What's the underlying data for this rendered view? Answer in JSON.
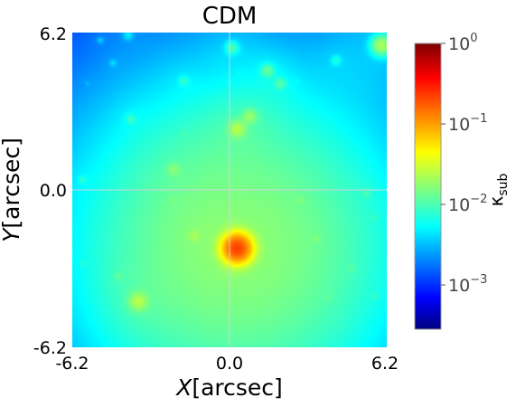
{
  "chart_data": {
    "type": "heatmap",
    "title": "CDM",
    "xlabel_italic": "X",
    "xlabel_rest": "[arcsec]",
    "ylabel_italic": "Y",
    "ylabel_rest": "[arcsec]",
    "xlim": [
      -6.2,
      6.2
    ],
    "ylim": [
      -6.2,
      6.2
    ],
    "x_ticks": [
      "-6.2",
      "0.0",
      "6.2"
    ],
    "y_ticks": [
      "6.2",
      "0.0",
      "-6.2"
    ],
    "crosshair": {
      "x": 0.0,
      "y": 0.0,
      "color": "#d0d0e0"
    },
    "colorbar": {
      "label_main": "κ",
      "label_sub": "sub",
      "scale": "log",
      "range": [
        0.0003,
        1.0
      ],
      "tick_base": "10",
      "tick_exponents": [
        "0",
        "−1",
        "−2",
        "−3"
      ],
      "tick_values": [
        1.0,
        0.1,
        0.01,
        0.001
      ],
      "colormap": "jet"
    },
    "background_kappa": 0.0012,
    "subhalos": [
      {
        "x": 0.3,
        "y": -2.3,
        "peak": 0.2,
        "core": 0.8,
        "halo": 4.0
      },
      {
        "x": -3.6,
        "y": -4.4,
        "peak": 0.015,
        "core": 0.55,
        "halo": 1.0
      },
      {
        "x": 0.3,
        "y": 2.4,
        "peak": 0.015,
        "core": 0.5,
        "halo": 1.0
      },
      {
        "x": 0.8,
        "y": 2.9,
        "peak": 0.01,
        "core": 0.45,
        "halo": 0.8
      },
      {
        "x": 1.5,
        "y": 4.7,
        "peak": 0.008,
        "core": 0.4,
        "halo": 0.7
      },
      {
        "x": 2.0,
        "y": 4.2,
        "peak": 0.006,
        "core": 0.35,
        "halo": 0.6
      },
      {
        "x": 0.1,
        "y": 5.6,
        "peak": 0.007,
        "core": 0.4,
        "halo": 0.8
      },
      {
        "x": 6.0,
        "y": 5.7,
        "peak": 0.02,
        "core": 0.6,
        "halo": 1.5
      },
      {
        "x": -2.2,
        "y": 0.8,
        "peak": 0.006,
        "core": 0.4,
        "halo": 1.2
      },
      {
        "x": -1.4,
        "y": -1.8,
        "peak": 0.006,
        "core": 0.35,
        "halo": 0.8
      },
      {
        "x": -1.8,
        "y": 4.3,
        "peak": 0.004,
        "core": 0.3,
        "halo": 0.5
      },
      {
        "x": -3.9,
        "y": 2.8,
        "peak": 0.004,
        "core": 0.3,
        "halo": 0.5
      },
      {
        "x": 5.4,
        "y": -0.1,
        "peak": 0.003,
        "core": 0.3,
        "halo": 0.6
      },
      {
        "x": 2.8,
        "y": -0.4,
        "peak": 0.003,
        "core": 0.25,
        "halo": 0.5
      },
      {
        "x": 3.4,
        "y": -1.9,
        "peak": 0.003,
        "core": 0.25,
        "halo": 0.5
      },
      {
        "x": 4.2,
        "y": 5.1,
        "peak": 0.004,
        "core": 0.3,
        "halo": 0.6
      },
      {
        "x": -4.4,
        "y": -3.4,
        "peak": 0.003,
        "core": 0.25,
        "halo": 0.4
      },
      {
        "x": -5.8,
        "y": 0.4,
        "peak": 0.003,
        "core": 0.25,
        "halo": 0.4
      },
      {
        "x": -2.2,
        "y": -0.4,
        "peak": 0.002,
        "core": 0.2,
        "halo": 0.4
      },
      {
        "x": -4.0,
        "y": 6.1,
        "peak": 0.003,
        "core": 0.3,
        "halo": 0.5
      },
      {
        "x": 4.8,
        "y": -3.1,
        "peak": 0.002,
        "core": 0.25,
        "halo": 0.4
      },
      {
        "x": 3.9,
        "y": -4.2,
        "peak": 0.002,
        "core": 0.2,
        "halo": 0.4
      },
      {
        "x": 5.7,
        "y": -4.2,
        "peak": 0.002,
        "core": 0.2,
        "halo": 0.3
      },
      {
        "x": -5.1,
        "y": 5.9,
        "peak": 0.002,
        "core": 0.2,
        "halo": 0.3
      },
      {
        "x": -4.6,
        "y": 5.0,
        "peak": 0.002,
        "core": 0.2,
        "halo": 0.3
      },
      {
        "x": 5.7,
        "y": -1.1,
        "peak": 0.0018,
        "core": 0.18,
        "halo": 0.3
      },
      {
        "x": -5.8,
        "y": -2.9,
        "peak": 0.0015,
        "core": 0.18,
        "halo": 0.3
      },
      {
        "x": -1.8,
        "y": 2.2,
        "peak": 0.0015,
        "core": 0.15,
        "halo": 0.3
      },
      {
        "x": 4.4,
        "y": -5.4,
        "peak": 0.0014,
        "core": 0.15,
        "halo": 0.3
      },
      {
        "x": 2.7,
        "y": 4.3,
        "peak": 0.0012,
        "core": 0.12,
        "halo": 0.2
      },
      {
        "x": 0.4,
        "y": 4.6,
        "peak": 0.0013,
        "core": 0.12,
        "halo": 0.2
      },
      {
        "x": -5.6,
        "y": 4.2,
        "peak": 0.0011,
        "core": 0.1,
        "halo": 0.2
      }
    ]
  }
}
